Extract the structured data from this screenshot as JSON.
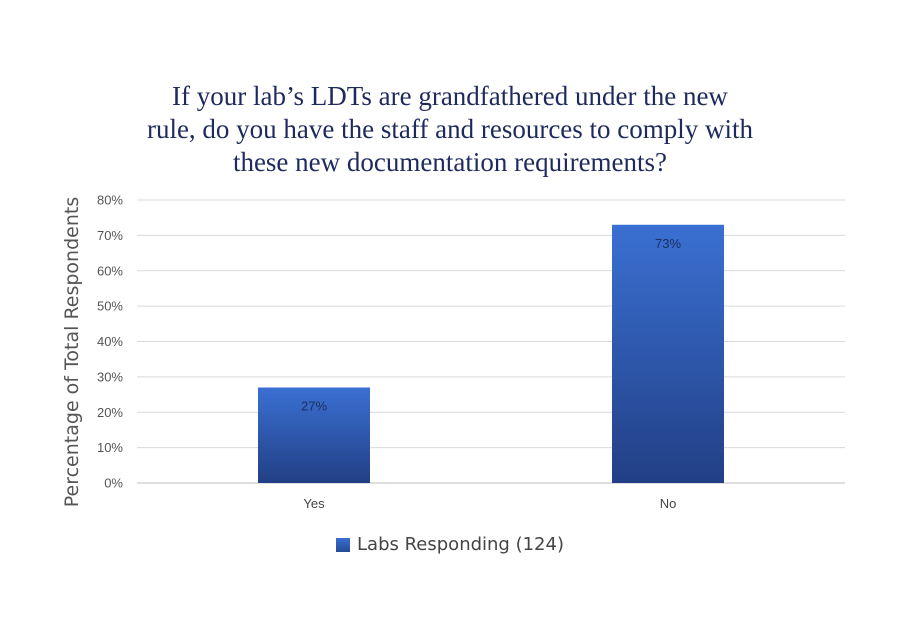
{
  "chart_data": {
    "type": "bar",
    "title": "If your lab’s LDTs are grandfathered under the new rule, do you have the staff and resources to comply with these new documentation requirements?",
    "title_lines": [
      "If your lab’s LDTs are grandfathered under the new",
      "rule, do you have the staff and resources to comply with",
      "these new documentation requirements?"
    ],
    "xlabel": "",
    "ylabel": "Percentage of Total Respondents",
    "categories": [
      "Yes",
      "No"
    ],
    "series": [
      {
        "name": "Labs Responding (124)",
        "values": [
          27,
          73
        ],
        "data_labels": [
          "27%",
          "73%"
        ]
      }
    ],
    "ylim": [
      0,
      80
    ],
    "y_ticks": [
      "0%",
      "10%",
      "20%",
      "30%",
      "40%",
      "50%",
      "60%",
      "70%",
      "80%"
    ],
    "grid": true,
    "legend_position": "bottom",
    "colors": {
      "bar_top": "#3a70d2",
      "bar_bottom": "#223f85",
      "grid": "#d9d9d9",
      "axis": "#bfbfbf"
    }
  }
}
